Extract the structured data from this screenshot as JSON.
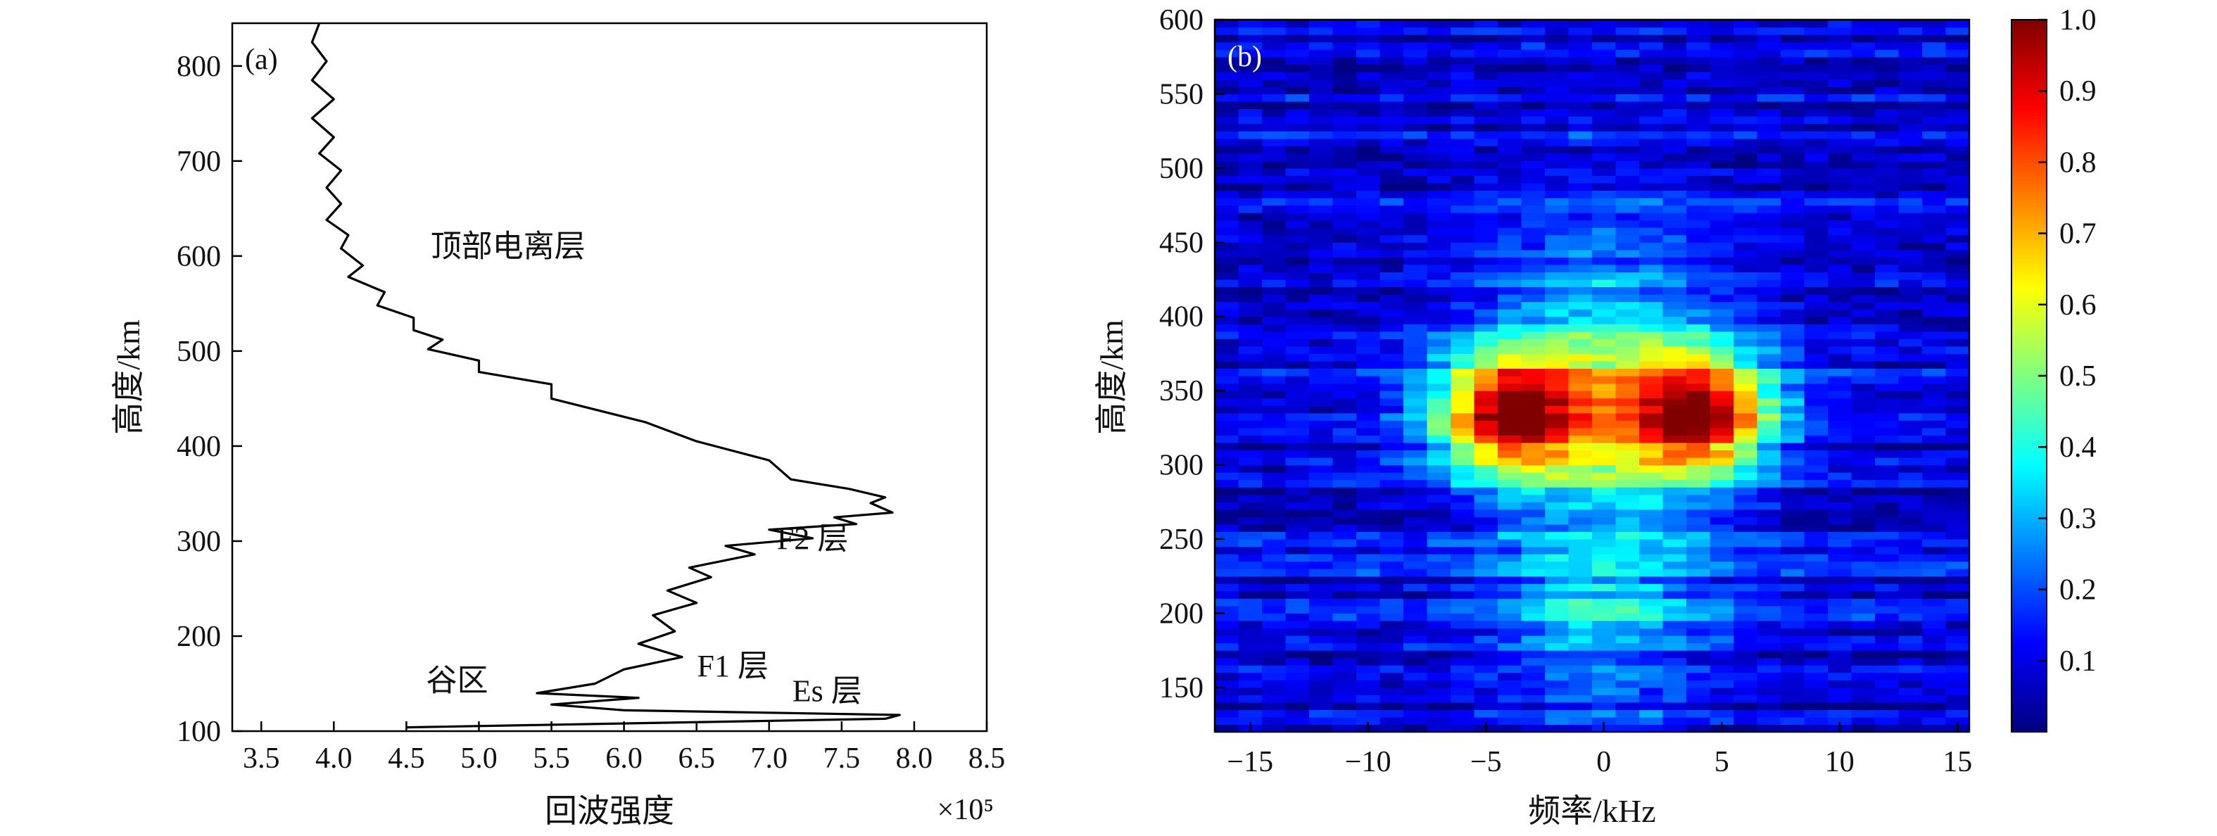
{
  "chart_data": [
    {
      "type": "line",
      "panel_label": "(a)",
      "xlabel": "回波强度",
      "ylabel": "高度/km",
      "x_multiplier": "×10⁵",
      "xlim": [
        3.3,
        8.5
      ],
      "ylim": [
        100,
        845
      ],
      "xticks": [
        3.5,
        4.0,
        4.5,
        5.0,
        5.5,
        6.0,
        6.5,
        7.0,
        7.5,
        8.0,
        8.5
      ],
      "xtick_labels": [
        "3.5",
        "4.0",
        "4.5",
        "5.0",
        "5.5",
        "6.0",
        "6.5",
        "7.0",
        "7.5",
        "8.0",
        "8.5"
      ],
      "yticks": [
        100,
        200,
        300,
        400,
        500,
        600,
        700,
        800
      ],
      "ytick_labels": [
        "100",
        "200",
        "300",
        "400",
        "500",
        "600",
        "700",
        "800"
      ],
      "series": [
        {
          "x": [
            4.5,
            7.8,
            7.9,
            6.0,
            5.5,
            6.1,
            5.4,
            5.8,
            6.0,
            6.4,
            6.1,
            6.35,
            6.2,
            6.5,
            6.3,
            6.6,
            6.45,
            6.9,
            6.7,
            7.3,
            7.0,
            7.6,
            7.45,
            7.85,
            7.7,
            7.8,
            7.55,
            7.15,
            7.0,
            6.5,
            6.15,
            5.5,
            5.5,
            5.0,
            5.0,
            4.65,
            4.75,
            4.55,
            4.55,
            4.3,
            4.35,
            4.1,
            4.2,
            4.05,
            4.1,
            3.95,
            4.05,
            3.95,
            4.05,
            3.9,
            4.0,
            3.85,
            4.0,
            3.85,
            3.95,
            3.85,
            3.9
          ],
          "y": [
            104,
            113,
            117,
            122,
            128,
            135,
            140,
            150,
            165,
            178,
            192,
            205,
            222,
            235,
            248,
            262,
            272,
            286,
            295,
            303,
            312,
            318,
            325,
            330,
            340,
            346,
            355,
            365,
            385,
            405,
            425,
            450,
            465,
            478,
            490,
            502,
            512,
            522,
            535,
            548,
            562,
            578,
            590,
            608,
            622,
            638,
            655,
            672,
            690,
            708,
            725,
            745,
            765,
            785,
            805,
            825,
            845
          ]
        }
      ],
      "annotations": [
        {
          "text": "顶部电离层",
          "x": 5.2,
          "y": 610
        },
        {
          "text": "F2 层",
          "x": 7.3,
          "y": 302
        },
        {
          "text": "F1 层",
          "x": 6.75,
          "y": 168
        },
        {
          "text": "谷区",
          "x": 4.85,
          "y": 153
        },
        {
          "text": "Es 层",
          "x": 7.4,
          "y": 142
        }
      ]
    },
    {
      "type": "heatmap",
      "panel_label": "(b)",
      "xlabel": "频率/kHz",
      "ylabel": "高度/km",
      "xlim": [
        -16.5,
        15.5
      ],
      "ylim": [
        120,
        600
      ],
      "xticks": [
        -15,
        -10,
        -5,
        0,
        5,
        10,
        15
      ],
      "xtick_labels": [
        "−15",
        "−10",
        "−5",
        "0",
        "5",
        "10",
        "15"
      ],
      "yticks": [
        150,
        200,
        250,
        300,
        350,
        400,
        450,
        500,
        550,
        600
      ],
      "ytick_labels": [
        "150",
        "200",
        "250",
        "300",
        "350",
        "400",
        "450",
        "500",
        "550",
        "600"
      ],
      "colorbar": {
        "range": [
          0,
          1.0
        ],
        "ticks": [
          0.1,
          0.2,
          0.3,
          0.4,
          0.5,
          0.6,
          0.7,
          0.8,
          0.9,
          1.0
        ],
        "tick_labels": [
          "0.1",
          "0.2",
          "0.3",
          "0.4",
          "0.5",
          "0.6",
          "0.7",
          "0.8",
          "0.9",
          "1.0"
        ],
        "colormap": "jet"
      },
      "grid": {
        "freq_min": -16.5,
        "freq_step": 1.0,
        "n_freq": 32,
        "height_min": 120,
        "height_step": 5.0,
        "n_height": 96
      },
      "features": [
        {
          "name": "F-region peak lobes",
          "center_height_km": 335,
          "lobe_freqs_khz": [
            -4,
            4
          ],
          "peak_value": 0.95
        },
        {
          "name": "lower band",
          "center_height_km": 200,
          "freq_khz": 0,
          "value": 0.35
        }
      ]
    }
  ]
}
